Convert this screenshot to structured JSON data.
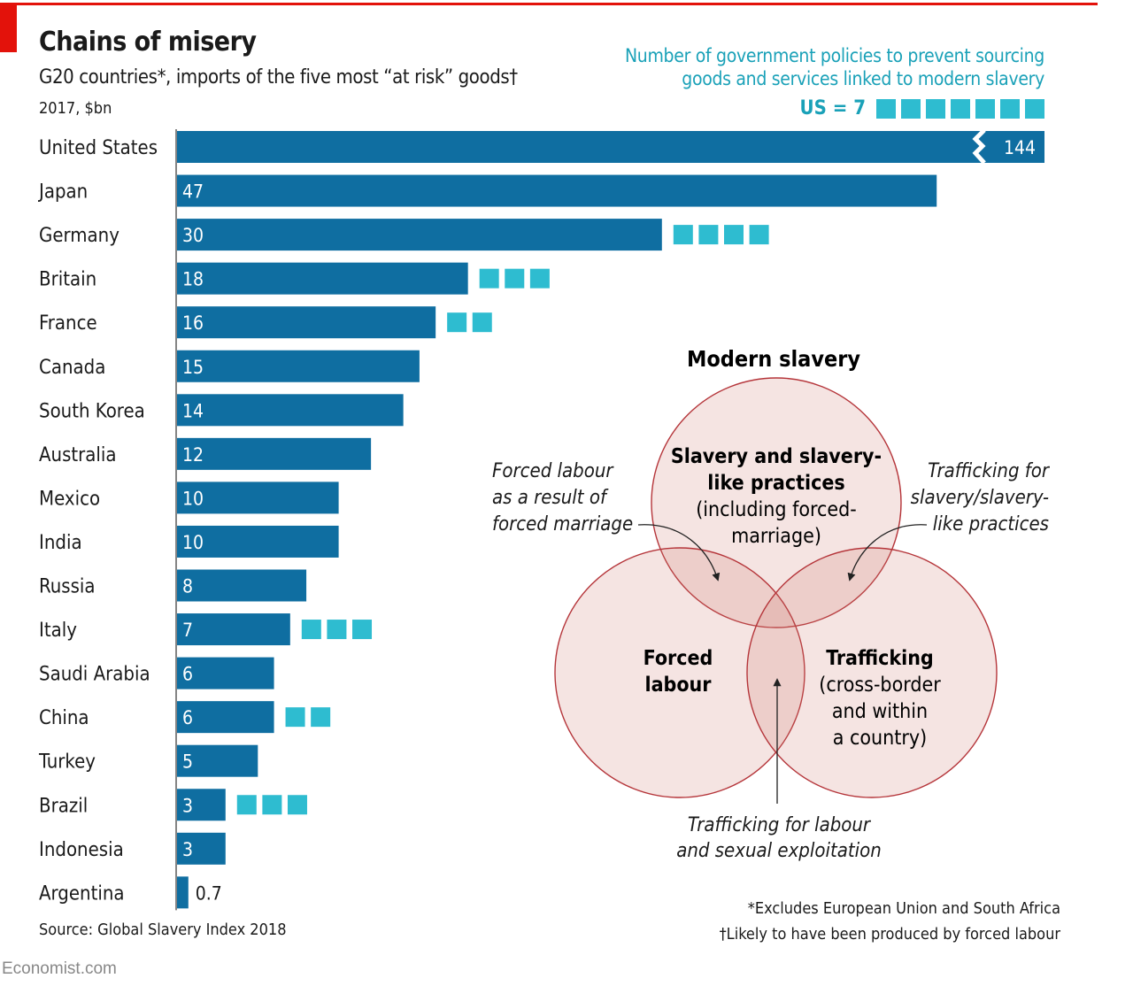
{
  "header": {
    "title": "Chains of misery",
    "subtitle": "G20 countries*, imports of the five most “at risk” goods†",
    "unit": "2017, $bn"
  },
  "policy_legend": {
    "title_line1": "Number of government policies to prevent sourcing",
    "title_line2": "goods and services linked to modern slavery",
    "us_label": "US = 7",
    "us_count": 7,
    "color": "#2ebcd0"
  },
  "chart_data": {
    "type": "bar",
    "orientation": "horizontal",
    "title": "Chains of misery",
    "subtitle": "G20 countries*, imports of the five most “at risk” goods†",
    "unit": "2017, $bn",
    "bar_color": "#0f6ea1",
    "categories": [
      "United States",
      "Japan",
      "Germany",
      "Britain",
      "France",
      "Canada",
      "South Korea",
      "Australia",
      "Mexico",
      "India",
      "Russia",
      "Italy",
      "Saudi Arabia",
      "China",
      "Turkey",
      "Brazil",
      "Indonesia",
      "Argentina"
    ],
    "values": [
      144,
      47,
      30,
      18,
      16,
      15,
      14,
      12,
      10,
      10,
      8,
      7,
      6,
      6,
      5,
      3,
      3,
      0.7
    ],
    "labels": [
      "144",
      "47",
      "30",
      "18",
      "16",
      "15",
      "14",
      "12",
      "10",
      "10",
      "8",
      "7",
      "6",
      "6",
      "5",
      "3",
      "3",
      "0.7"
    ],
    "policies": [
      7,
      0,
      4,
      3,
      2,
      0,
      0,
      0,
      0,
      0,
      0,
      3,
      0,
      2,
      0,
      3,
      0,
      0
    ],
    "broken_axis_bar": "United States"
  },
  "venn": {
    "title": "Modern slavery",
    "fill": "#f2dcd8",
    "stroke": "#b5353a",
    "top": {
      "bold": [
        "Slavery and slavery-",
        "like practices"
      ],
      "normal": [
        "(including forced-",
        "marriage)"
      ]
    },
    "left": {
      "bold": [
        "Forced",
        "labour"
      ]
    },
    "right": {
      "bold": [
        "Trafficking"
      ],
      "normal": [
        "(cross-border",
        "and within",
        "a country)"
      ]
    },
    "ann_left": [
      "Forced labour",
      "as a result of",
      "forced marriage"
    ],
    "ann_right": [
      "Trafficking for",
      "slavery/slavery-",
      "like practices"
    ],
    "ann_bottom": [
      "Trafficking for labour",
      "and sexual exploitation"
    ]
  },
  "footer": {
    "source": "Source: Global Slavery Index 2018",
    "note1": "*Excludes European Union and South Africa",
    "note2": "†Likely to have been produced by forced labour",
    "brand": "Economist.com"
  }
}
